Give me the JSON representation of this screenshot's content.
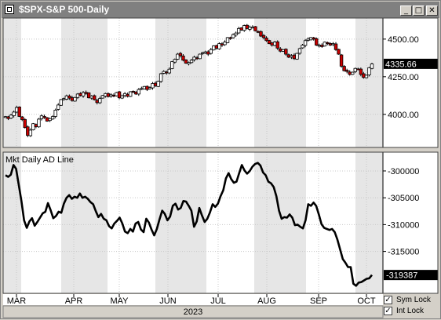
{
  "window": {
    "title": "$SPX-S&P 500-Daily",
    "minimize_glyph": "_",
    "maximize_glyph": "□",
    "close_glyph": "✕"
  },
  "colors": {
    "up_candle": "#ffffff",
    "down_candle": "#cc0000",
    "line": "#000000",
    "bg_light": "#ffffff",
    "bg_shade": "#e6e6e6"
  },
  "chart_data": [
    {
      "type": "candlestick",
      "title": "$SPX-S&P 500-Daily",
      "ylim": [
        3780,
        4640
      ],
      "yticks": [
        4000,
        4250,
        4500
      ],
      "ytick_labels": [
        "4000.00",
        "4250.00",
        "4500.00"
      ],
      "last_value_label": "4335.66",
      "last_value": 4335.66,
      "closes": [
        3985,
        3972,
        3995,
        4015,
        4045,
        3986,
        3965,
        3912,
        3860,
        3895,
        3938,
        3918,
        3968,
        3990,
        3978,
        3955,
        3972,
        3985,
        4028,
        4062,
        4098,
        4105,
        4123,
        4108,
        4092,
        4112,
        4135,
        4125,
        4145,
        4138,
        4110,
        4122,
        4098,
        4078,
        4105,
        4125,
        4138,
        4118,
        4130,
        4122,
        4145,
        4110,
        4123,
        4138,
        4120,
        4150,
        4152,
        4135,
        4165,
        4172,
        4185,
        4165,
        4178,
        4205,
        4190,
        4220,
        4270,
        4285,
        4275,
        4300,
        4350,
        4365,
        4400,
        4390,
        4360,
        4340,
        4345,
        4360,
        4380,
        4370,
        4400,
        4410,
        4415,
        4400,
        4430,
        4455,
        4440,
        4470,
        4460,
        4480,
        4510,
        4505,
        4530,
        4540,
        4570,
        4560,
        4590,
        4570,
        4580,
        4580,
        4555,
        4550,
        4520,
        4510,
        4490,
        4470,
        4460,
        4480,
        4440,
        4420,
        4430,
        4400,
        4380,
        4390,
        4370,
        4405,
        4437,
        4460,
        4490,
        4500,
        4510,
        4500,
        4460,
        4460,
        4450,
        4480,
        4470,
        4460,
        4470,
        4430,
        4400,
        4320,
        4290,
        4285,
        4265,
        4280,
        4305,
        4300,
        4265,
        4245,
        4260,
        4310,
        4335
      ],
      "x_labels": [
        "MAR",
        "APR",
        "MAY",
        "JUN",
        "JUL",
        "AUG",
        "SEP",
        "OCT"
      ],
      "x_label_bar": "2023"
    },
    {
      "type": "line",
      "title": "Mkt Daily AD Line",
      "ylim": [
        -322800,
        -296500
      ],
      "yticks": [
        -300000,
        -305000,
        -310000,
        -315000
      ],
      "ytick_labels": [
        "-300000",
        "-305000",
        "-310000",
        "-315000"
      ],
      "last_value_label": "-319387",
      "last_value": -319387,
      "values": [
        -300800,
        -301100,
        -300700,
        -298900,
        -299600,
        -302600,
        -305600,
        -309200,
        -310600,
        -309400,
        -308800,
        -310200,
        -309500,
        -308700,
        -307900,
        -307600,
        -306000,
        -307300,
        -308800,
        -308400,
        -307600,
        -307800,
        -306100,
        -305000,
        -304500,
        -305200,
        -304800,
        -305000,
        -304200,
        -305000,
        -304800,
        -305200,
        -305800,
        -306200,
        -307500,
        -308600,
        -308000,
        -308900,
        -309200,
        -310300,
        -310700,
        -309800,
        -309300,
        -308700,
        -309800,
        -311300,
        -311600,
        -310800,
        -311300,
        -309800,
        -309500,
        -310900,
        -311400,
        -308900,
        -309600,
        -310900,
        -312000,
        -310800,
        -309000,
        -307400,
        -308000,
        -309200,
        -308500,
        -306500,
        -306100,
        -307200,
        -306900,
        -305600,
        -305700,
        -306500,
        -307400,
        -310400,
        -309400,
        -306900,
        -308300,
        -309500,
        -308900,
        -307700,
        -306200,
        -306700,
        -306100,
        -304700,
        -303600,
        -301400,
        -300400,
        -301500,
        -302200,
        -302000,
        -300400,
        -298900,
        -299900,
        -300500,
        -300000,
        -299200,
        -298700,
        -298500,
        -299000,
        -300300,
        -300800,
        -302000,
        -302300,
        -303000,
        -304700,
        -307400,
        -308900,
        -308600,
        -308700,
        -308100,
        -308700,
        -310100,
        -310000,
        -310400,
        -310700,
        -309200,
        -306200,
        -306500,
        -305900,
        -306500,
        -308100,
        -309900,
        -310600,
        -310800,
        -311000,
        -310800,
        -311400,
        -312800,
        -314600,
        -316400,
        -317100,
        -317900,
        -317900,
        -321000,
        -321400,
        -320800,
        -320700,
        -320400,
        -320100,
        -320000,
        -319387
      ]
    }
  ],
  "footer": {
    "sym_lock_label": "Sym Lock",
    "int_lock_label": "Int Lock",
    "sym_lock_checked": true,
    "int_lock_checked": true,
    "check_glyph": "✓"
  }
}
